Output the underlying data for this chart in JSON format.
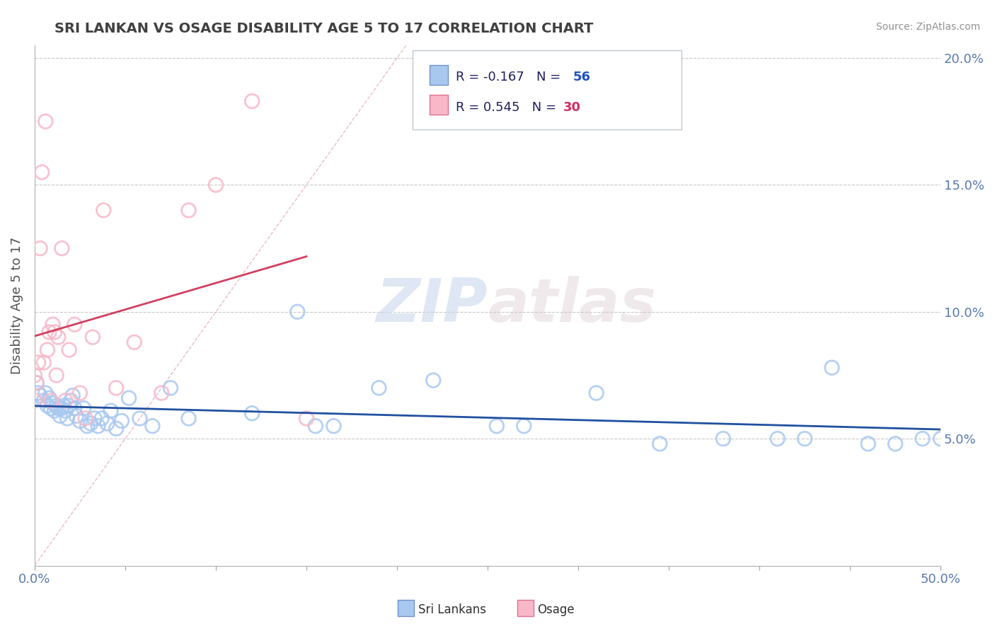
{
  "title": "SRI LANKAN VS OSAGE DISABILITY AGE 5 TO 17 CORRELATION CHART",
  "source": "Source: ZipAtlas.com",
  "ylabel": "Disability Age 5 to 17",
  "xlim": [
    0.0,
    0.5
  ],
  "ylim": [
    0.0,
    0.205
  ],
  "xticks": [
    0.0,
    0.05,
    0.1,
    0.15,
    0.2,
    0.25,
    0.3,
    0.35,
    0.4,
    0.45,
    0.5
  ],
  "yticks": [
    0.0,
    0.05,
    0.1,
    0.15,
    0.2
  ],
  "blue_color": "#a8c8f0",
  "blue_edge_color": "#7090c8",
  "pink_color": "#f8b8c8",
  "pink_edge_color": "#e07090",
  "blue_line_color": "#2050a0",
  "pink_line_color": "#d04060",
  "ref_line_color": "#e0a0b0",
  "legend_label_blue": "Sri Lankans",
  "legend_label_pink": "Osage",
  "watermark_zip": "ZIP",
  "watermark_atlas": "atlas",
  "blue_x": [
    0.001,
    0.002,
    0.003,
    0.005,
    0.006,
    0.007,
    0.008,
    0.009,
    0.01,
    0.011,
    0.012,
    0.013,
    0.014,
    0.015,
    0.016,
    0.017,
    0.018,
    0.019,
    0.02,
    0.021,
    0.022,
    0.023,
    0.025,
    0.027,
    0.029,
    0.031,
    0.033,
    0.035,
    0.037,
    0.04,
    0.042,
    0.045,
    0.048,
    0.052,
    0.058,
    0.065,
    0.075,
    0.085,
    0.12,
    0.145,
    0.155,
    0.165,
    0.19,
    0.22,
    0.255,
    0.27,
    0.31,
    0.345,
    0.38,
    0.41,
    0.425,
    0.44,
    0.46,
    0.475,
    0.49,
    0.5
  ],
  "blue_y": [
    0.072,
    0.068,
    0.067,
    0.065,
    0.068,
    0.063,
    0.066,
    0.062,
    0.064,
    0.061,
    0.063,
    0.062,
    0.059,
    0.062,
    0.063,
    0.061,
    0.058,
    0.063,
    0.065,
    0.067,
    0.062,
    0.059,
    0.057,
    0.062,
    0.055,
    0.056,
    0.058,
    0.055,
    0.058,
    0.056,
    0.061,
    0.054,
    0.057,
    0.066,
    0.058,
    0.055,
    0.07,
    0.058,
    0.06,
    0.1,
    0.055,
    0.055,
    0.07,
    0.073,
    0.055,
    0.055,
    0.068,
    0.048,
    0.05,
    0.05,
    0.05,
    0.078,
    0.048,
    0.048,
    0.05,
    0.05
  ],
  "pink_x": [
    0.0,
    0.0,
    0.001,
    0.002,
    0.003,
    0.004,
    0.005,
    0.006,
    0.007,
    0.008,
    0.009,
    0.01,
    0.011,
    0.012,
    0.013,
    0.015,
    0.017,
    0.019,
    0.022,
    0.025,
    0.028,
    0.032,
    0.038,
    0.045,
    0.055,
    0.07,
    0.085,
    0.1,
    0.12,
    0.15
  ],
  "pink_y": [
    0.075,
    0.065,
    0.072,
    0.08,
    0.125,
    0.155,
    0.08,
    0.175,
    0.085,
    0.092,
    0.065,
    0.095,
    0.092,
    0.075,
    0.09,
    0.125,
    0.065,
    0.085,
    0.095,
    0.068,
    0.058,
    0.09,
    0.14,
    0.07,
    0.088,
    0.068,
    0.14,
    0.15,
    0.183,
    0.058
  ]
}
